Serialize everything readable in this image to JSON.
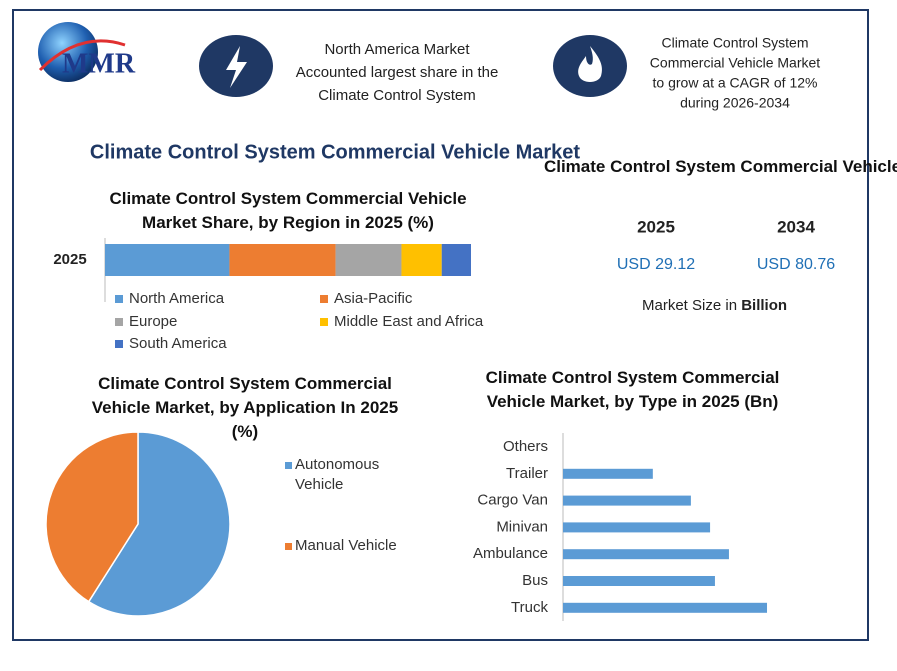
{
  "header": {
    "logo": "MMR",
    "callouts": [
      [
        "North America Market",
        "Accounted largest share in the",
        "Climate Control System"
      ],
      [
        "Climate Control System",
        "Commercial Vehicle Market",
        "to grow at a CAGR of 12%",
        "during 2026-2034"
      ]
    ]
  },
  "main_title": "Climate Control System Commercial Vehicle Market",
  "market_size": {
    "title": "Climate Control System Commercial Vehicle",
    "years": [
      "2025",
      "2034"
    ],
    "values": [
      "USD 29.12",
      "USD 80.76"
    ],
    "note": "Market Size in",
    "note_unit": "Billion"
  },
  "chart_data": [
    {
      "type": "stacked-bar",
      "title": "Climate Control System Commercial Vehicle Market Share, by Region in 2025 (%)",
      "categories": [
        "2025"
      ],
      "series": [
        {
          "name": "North America",
          "color": "#5b9bd5",
          "values": [
            34
          ]
        },
        {
          "name": "Asia-Pacific",
          "color": "#ed7d31",
          "values": [
            29
          ]
        },
        {
          "name": "Europe",
          "color": "#a5a5a5",
          "values": [
            18
          ]
        },
        {
          "name": "Middle East and Africa",
          "color": "#ffc000",
          "values": [
            11
          ]
        },
        {
          "name": "South America",
          "color": "#4472c4",
          "values": [
            8
          ]
        }
      ]
    },
    {
      "type": "pie",
      "title": "Climate Control System Commercial Vehicle Market, by Application In 2025 (%)",
      "categories": [
        "Autonomous Vehicle",
        "Manual Vehicle"
      ],
      "values": [
        59,
        41
      ],
      "colors": [
        "#5b9bd5",
        "#ed7d31"
      ]
    },
    {
      "type": "hbar",
      "title": "Climate Control System Commercial Vehicle Market, by Type in 2025 (Bn)",
      "categories": [
        "Others",
        "Trailer",
        "Cargo Van",
        "Minivan",
        "Ambulance",
        "Bus",
        "Truck"
      ],
      "values": [
        0,
        2.95,
        4.2,
        4.83,
        5.45,
        4.99,
        6.7
      ],
      "color": "#5b9bd5"
    }
  ]
}
